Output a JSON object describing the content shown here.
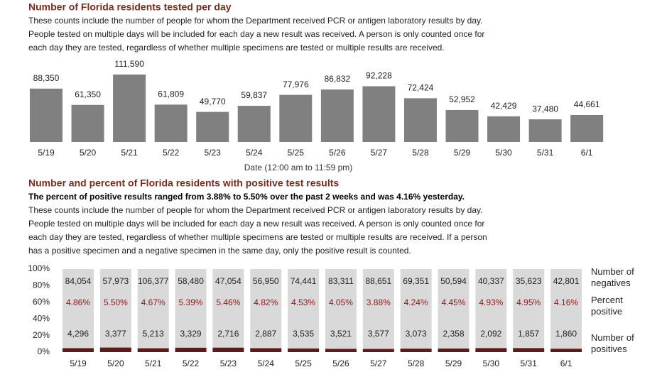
{
  "chart_data": [
    {
      "type": "bar",
      "title": "Number of Florida residents tested per day",
      "description": [
        "These counts include the number of people for whom the Department received PCR or antigen laboratory results by day.",
        "People tested on multiple days will be included for each day a new result was received. A person is only counted once for",
        "each day they are tested, regardless of whether multiple specimens are tested or multiple results are received."
      ],
      "x_label": "Date (12:00 am to 11:59 pm)",
      "categories": [
        "5/19",
        "5/20",
        "5/21",
        "5/22",
        "5/23",
        "5/24",
        "5/25",
        "5/26",
        "5/27",
        "5/28",
        "5/29",
        "5/30",
        "5/31",
        "6/1"
      ],
      "values": [
        88350,
        61350,
        111590,
        61809,
        49770,
        59837,
        77976,
        86832,
        92228,
        72424,
        52952,
        42429,
        37480,
        44661
      ],
      "value_labels": [
        "88,350",
        "61,350",
        "111,590",
        "61,809",
        "49,770",
        "59,837",
        "77,976",
        "86,832",
        "92,228",
        "72,424",
        "52,952",
        "42,429",
        "37,480",
        "44,661"
      ],
      "color": "#808080"
    },
    {
      "type": "stacked_percent_bar",
      "title": "Number and percent of Florida residents with positive test results",
      "subtitle": "The percent of positive results ranged from 3.88% to 5.50% over the past 2 weeks and was 4.16% yesterday.",
      "description": [
        "These counts include the number of people for whom the Department received PCR or antigen laboratory results by day.",
        "People tested on multiple days will be included for each day a new result was received. A person is only counted once for",
        "each day they are tested, regardless of whether multiple specimens are tested or multiple results are received. If a person",
        "has a positive specimen and a negative specimen in the same day, only the positive result is counted."
      ],
      "categories": [
        "5/19",
        "5/20",
        "5/21",
        "5/22",
        "5/23",
        "5/24",
        "5/25",
        "5/26",
        "5/27",
        "5/28",
        "5/29",
        "5/30",
        "5/31",
        "6/1"
      ],
      "series": [
        {
          "name": "Number of positives",
          "color": "#5c1b1b",
          "values": [
            4296,
            3377,
            5213,
            3329,
            2716,
            2887,
            3535,
            3521,
            3577,
            3073,
            2358,
            2092,
            1857,
            1860
          ],
          "value_labels": [
            "4,296",
            "3,377",
            "5,213",
            "3,329",
            "2,716",
            "2,887",
            "3,535",
            "3,521",
            "3,577",
            "3,073",
            "2,358",
            "2,092",
            "1,857",
            "1,860"
          ]
        },
        {
          "name": "Number of negatives",
          "color": "#d9d9d9",
          "values": [
            84054,
            57973,
            106377,
            58480,
            47054,
            56950,
            74441,
            83311,
            88651,
            69351,
            50594,
            40337,
            35623,
            42801
          ],
          "value_labels": [
            "84,054",
            "57,973",
            "106,377",
            "58,480",
            "47,054",
            "56,950",
            "74,441",
            "83,311",
            "88,651",
            "69,351",
            "50,594",
            "40,337",
            "35,623",
            "42,801"
          ]
        }
      ],
      "percent_positive": {
        "name": "Percent positive",
        "values": [
          4.86,
          5.5,
          4.67,
          5.39,
          5.46,
          4.82,
          4.53,
          4.05,
          3.88,
          4.24,
          4.45,
          4.93,
          4.95,
          4.16
        ],
        "value_labels": [
          "4.86%",
          "5.50%",
          "4.67%",
          "5.39%",
          "5.46%",
          "4.82%",
          "4.53%",
          "4.05%",
          "3.88%",
          "4.24%",
          "4.45%",
          "4.93%",
          "4.95%",
          "4.16%"
        ]
      },
      "ylim": [
        0,
        100
      ],
      "yticks": [
        {
          "value": 0,
          "label": "0%"
        },
        {
          "value": 20,
          "label": "20%"
        },
        {
          "value": 40,
          "label": "40%"
        },
        {
          "value": 60,
          "label": "60%"
        },
        {
          "value": 80,
          "label": "80%"
        },
        {
          "value": 100,
          "label": "100%"
        }
      ]
    }
  ]
}
